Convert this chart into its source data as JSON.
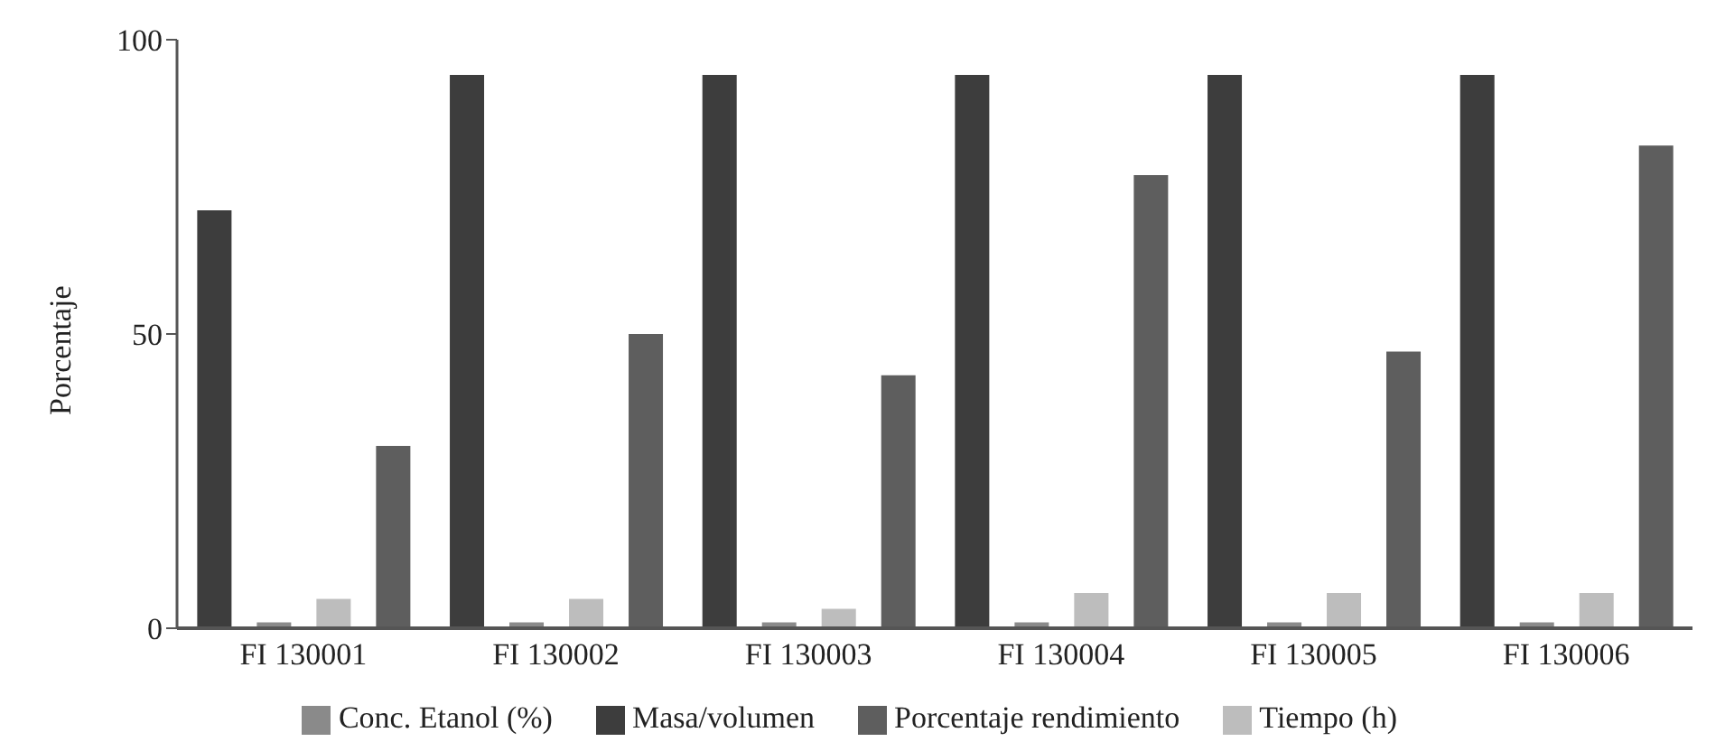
{
  "chart_data": {
    "type": "bar",
    "ylabel": "Porcentaje",
    "categories": [
      "FI 130001",
      "FI 130002",
      "FI 130003",
      "FI 130004",
      "FI 130005",
      "FI 130006"
    ],
    "series": [
      {
        "name": "Masa/volumen",
        "color": "#3d3d3d",
        "values": [
          71,
          94,
          94,
          94,
          94,
          94
        ]
      },
      {
        "name": "Conc. Etanol (%)",
        "color": "#8a8a8a",
        "values": [
          1,
          1,
          1,
          1,
          1,
          1
        ]
      },
      {
        "name": "Tiempo (h)",
        "color": "#bdbdbd",
        "values": [
          5,
          5,
          3.3,
          6,
          6,
          6
        ]
      },
      {
        "name": "Porcentaje rendimiento",
        "color": "#5e5e5e",
        "values": [
          31,
          50,
          43,
          77,
          47,
          82
        ]
      }
    ],
    "ylim": [
      0,
      100
    ],
    "yticks": [
      0,
      50,
      100
    ],
    "legend": "bottom"
  }
}
